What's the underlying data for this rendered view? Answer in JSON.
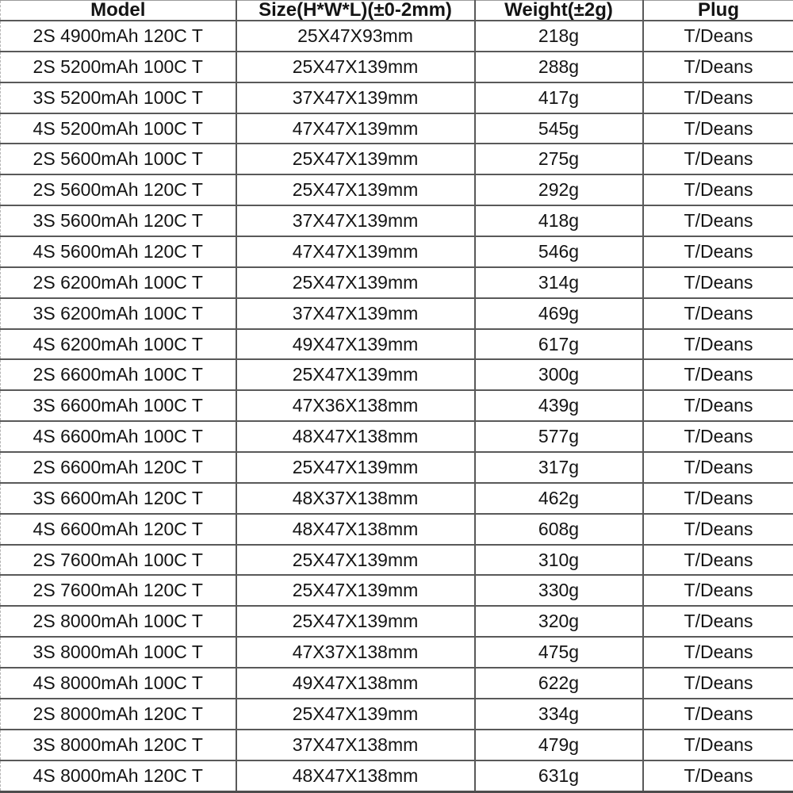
{
  "colors": {
    "background": "#ffffff",
    "border": "#595959",
    "text": "#141414"
  },
  "table": {
    "columns": [
      "Model",
      "Size(H*W*L)(±0-2mm)",
      "Weight(±2g)",
      "Plug"
    ],
    "rows": [
      {
        "model": "2S 4900mAh 120C T",
        "size": "25X47X93mm",
        "weight": "218g",
        "plug": "T/Deans"
      },
      {
        "model": "2S 5200mAh 100C T",
        "size": "25X47X139mm",
        "weight": "288g",
        "plug": "T/Deans"
      },
      {
        "model": "3S 5200mAh 100C T",
        "size": "37X47X139mm",
        "weight": "417g",
        "plug": "T/Deans"
      },
      {
        "model": "4S 5200mAh 100C T",
        "size": "47X47X139mm",
        "weight": "545g",
        "plug": "T/Deans"
      },
      {
        "model": "2S 5600mAh 100C T",
        "size": "25X47X139mm",
        "weight": "275g",
        "plug": "T/Deans"
      },
      {
        "model": "2S 5600mAh 120C T",
        "size": "25X47X139mm",
        "weight": "292g",
        "plug": "T/Deans"
      },
      {
        "model": "3S 5600mAh 120C T",
        "size": "37X47X139mm",
        "weight": "418g",
        "plug": "T/Deans"
      },
      {
        "model": "4S 5600mAh 120C T",
        "size": "47X47X139mm",
        "weight": "546g",
        "plug": "T/Deans"
      },
      {
        "model": "2S 6200mAh 100C T",
        "size": "25X47X139mm",
        "weight": "314g",
        "plug": "T/Deans"
      },
      {
        "model": "3S 6200mAh 100C T",
        "size": "37X47X139mm",
        "weight": "469g",
        "plug": "T/Deans"
      },
      {
        "model": "4S 6200mAh 100C T",
        "size": "49X47X139mm",
        "weight": "617g",
        "plug": "T/Deans"
      },
      {
        "model": "2S 6600mAh 100C T",
        "size": "25X47X139mm",
        "weight": "300g",
        "plug": "T/Deans"
      },
      {
        "model": "3S 6600mAh 100C T",
        "size": "47X36X138mm",
        "weight": "439g",
        "plug": "T/Deans"
      },
      {
        "model": "4S 6600mAh 100C T",
        "size": "48X47X138mm",
        "weight": "577g",
        "plug": "T/Deans"
      },
      {
        "model": "2S 6600mAh 120C T",
        "size": "25X47X139mm",
        "weight": "317g",
        "plug": "T/Deans"
      },
      {
        "model": "3S 6600mAh 120C T",
        "size": "48X37X138mm",
        "weight": "462g",
        "plug": "T/Deans"
      },
      {
        "model": "4S 6600mAh 120C T",
        "size": "48X47X138mm",
        "weight": "608g",
        "plug": "T/Deans"
      },
      {
        "model": "2S 7600mAh 100C T",
        "size": "25X47X139mm",
        "weight": "310g",
        "plug": "T/Deans"
      },
      {
        "model": "2S 7600mAh 120C T",
        "size": "25X47X139mm",
        "weight": "330g",
        "plug": "T/Deans"
      },
      {
        "model": "2S 8000mAh 100C T",
        "size": "25X47X139mm",
        "weight": "320g",
        "plug": "T/Deans"
      },
      {
        "model": "3S 8000mAh 100C T",
        "size": "47X37X138mm",
        "weight": "475g",
        "plug": "T/Deans"
      },
      {
        "model": "4S 8000mAh 100C T",
        "size": "49X47X138mm",
        "weight": "622g",
        "plug": "T/Deans"
      },
      {
        "model": "2S 8000mAh 120C T",
        "size": "25X47X139mm",
        "weight": "334g",
        "plug": "T/Deans"
      },
      {
        "model": "3S 8000mAh 120C T",
        "size": "37X47X138mm",
        "weight": "479g",
        "plug": "T/Deans"
      },
      {
        "model": "4S 8000mAh 120C T",
        "size": "48X47X138mm",
        "weight": "631g",
        "plug": "T/Deans"
      }
    ]
  }
}
